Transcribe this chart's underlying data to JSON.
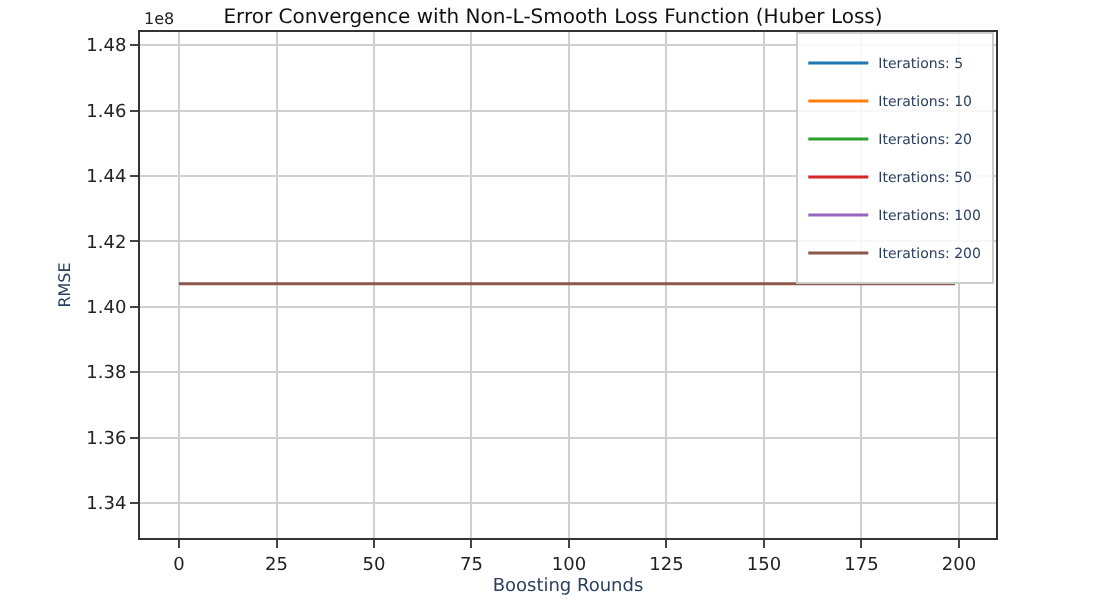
{
  "chart_data": {
    "type": "line",
    "title": "Error Convergence with Non-L-Smooth Loss Function (Huber Loss)",
    "xlabel": "Boosting Rounds",
    "ylabel": "RMSE",
    "annotations": [
      "1e8"
    ],
    "series": [
      {
        "name": "Iterations: 5",
        "color": "#1f77b4"
      },
      {
        "name": "Iterations: 10",
        "color": "#ff7f0e"
      },
      {
        "name": "Iterations: 20",
        "color": "#2ca02c"
      },
      {
        "name": "Iterations: 50",
        "color": "#d62728"
      },
      {
        "name": "Iterations: 100",
        "color": "#9467bd"
      },
      {
        "name": "Iterations: 200",
        "color": "#8c564b",
        "x": [
          0,
          199
        ],
        "values": [
          1.407,
          1.407
        ]
      }
    ],
    "xlim": [
      -10,
      209.5
    ],
    "xticks": [
      0,
      25,
      50,
      75,
      100,
      125,
      150,
      175,
      200
    ],
    "ylim": [
      1.3293,
      1.484
    ],
    "yticks": [
      {
        "value": 1.34,
        "label": "1.34"
      },
      {
        "value": 1.36,
        "label": "1.36"
      },
      {
        "value": 1.38,
        "label": "1.38"
      },
      {
        "value": 1.4,
        "label": "1.40"
      },
      {
        "value": 1.42,
        "label": "1.42"
      },
      {
        "value": 1.44,
        "label": "1.44"
      },
      {
        "value": 1.46,
        "label": "1.46"
      },
      {
        "value": 1.48,
        "label": "1.48"
      }
    ],
    "grid": true,
    "legend": "top right",
    "marker": "none",
    "line_style": "solid"
  }
}
